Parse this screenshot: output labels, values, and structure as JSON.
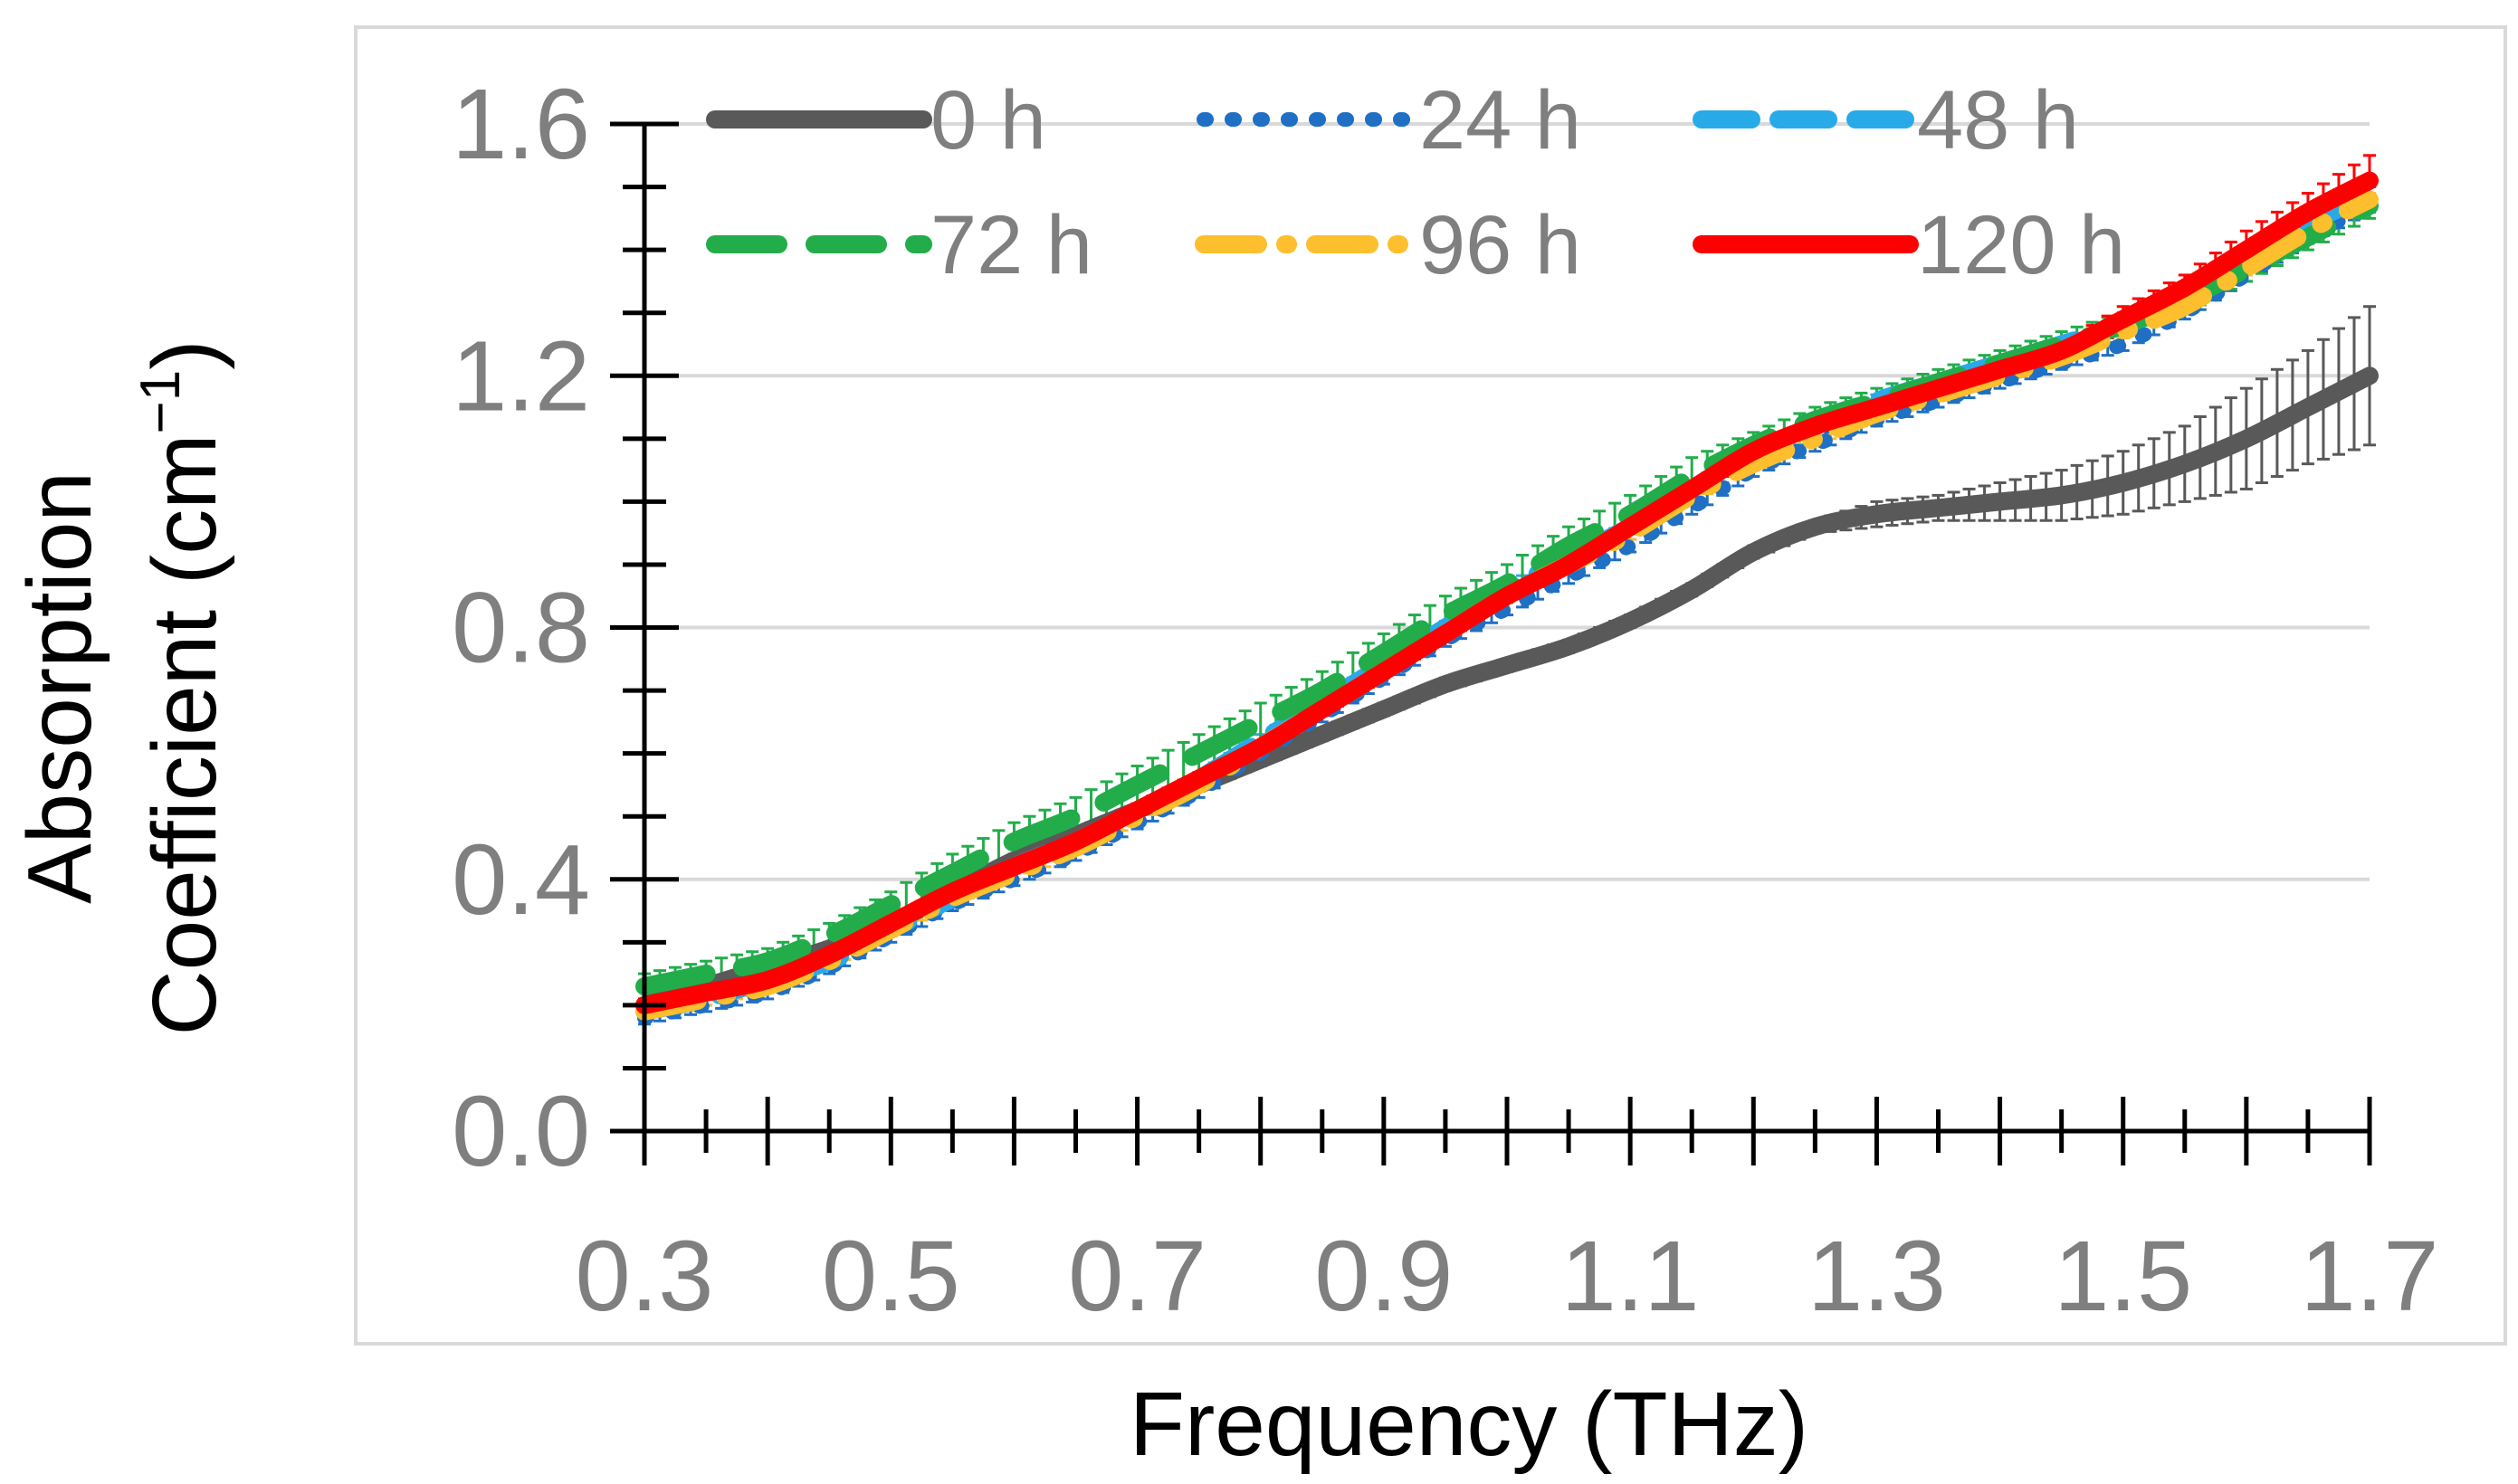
{
  "chart_data": {
    "type": "line",
    "title": "",
    "xlabel": "Frequency (THz)",
    "ylabel_line1": "Absorption",
    "ylabel_line2": "Coefficient (cm",
    "ylabel_sup": "−1",
    "ylabel_close": ")",
    "xlim": [
      0.3,
      1.7
    ],
    "ylim": [
      0.0,
      1.6
    ],
    "xticks": [
      "0.3",
      "0.5",
      "0.7",
      "0.9",
      "1.1",
      "1.3",
      "1.5",
      "1.7"
    ],
    "yticks": [
      "0.0",
      "0.4",
      "0.8",
      "1.2",
      "1.6"
    ],
    "grid": true,
    "legend_position": "top",
    "x": [
      0.3,
      0.35,
      0.4,
      0.45,
      0.5,
      0.55,
      0.6,
      0.65,
      0.7,
      0.75,
      0.8,
      0.85,
      0.9,
      0.95,
      1.0,
      1.05,
      1.1,
      1.15,
      1.2,
      1.25,
      1.3,
      1.35,
      1.4,
      1.45,
      1.5,
      1.55,
      1.6,
      1.65,
      1.7
    ],
    "series": [
      {
        "name": "0 h",
        "color": "#595959",
        "dash": "solid",
        "values": [
          0.2,
          0.23,
          0.26,
          0.29,
          0.33,
          0.38,
          0.43,
          0.47,
          0.51,
          0.55,
          0.59,
          0.63,
          0.67,
          0.71,
          0.74,
          0.77,
          0.81,
          0.86,
          0.92,
          0.96,
          0.98,
          0.99,
          1.0,
          1.01,
          1.03,
          1.06,
          1.1,
          1.15,
          1.2
        ],
        "errors": [
          0.01,
          0.01,
          0.01,
          0.01,
          0.01,
          0.01,
          0.01,
          0.01,
          0.01,
          0.01,
          0.01,
          0.01,
          0.01,
          0.01,
          0.01,
          0.01,
          0.01,
          0.01,
          0.01,
          0.01,
          0.02,
          0.02,
          0.03,
          0.04,
          0.05,
          0.06,
          0.08,
          0.09,
          0.11
        ]
      },
      {
        "name": "24 h",
        "color": "#1f6fc4",
        "dash": "dot",
        "values": [
          0.18,
          0.2,
          0.22,
          0.26,
          0.31,
          0.36,
          0.4,
          0.44,
          0.49,
          0.54,
          0.6,
          0.66,
          0.72,
          0.78,
          0.83,
          0.88,
          0.93,
          0.99,
          1.05,
          1.09,
          1.13,
          1.16,
          1.19,
          1.22,
          1.25,
          1.3,
          1.36,
          1.42,
          1.47
        ],
        "errors": [
          0.01,
          0.01,
          0.01,
          0.01,
          0.01,
          0.01,
          0.01,
          0.01,
          0.01,
          0.01,
          0.01,
          0.01,
          0.01,
          0.01,
          0.01,
          0.01,
          0.01,
          0.01,
          0.01,
          0.01,
          0.01,
          0.01,
          0.01,
          0.01,
          0.01,
          0.01,
          0.01,
          0.01,
          0.01
        ]
      },
      {
        "name": "48 h",
        "color": "#29aae8",
        "dash": "dash",
        "values": [
          0.19,
          0.21,
          0.24,
          0.27,
          0.32,
          0.37,
          0.42,
          0.46,
          0.51,
          0.56,
          0.62,
          0.68,
          0.74,
          0.8,
          0.86,
          0.91,
          0.96,
          1.02,
          1.08,
          1.12,
          1.16,
          1.19,
          1.22,
          1.25,
          1.28,
          1.32,
          1.38,
          1.44,
          1.49
        ],
        "errors": [
          0.01,
          0.01,
          0.01,
          0.01,
          0.01,
          0.01,
          0.01,
          0.01,
          0.01,
          0.01,
          0.01,
          0.01,
          0.01,
          0.01,
          0.01,
          0.01,
          0.01,
          0.01,
          0.01,
          0.01,
          0.01,
          0.01,
          0.01,
          0.01,
          0.01,
          0.01,
          0.01,
          0.01,
          0.01
        ]
      },
      {
        "name": "72 h",
        "color": "#22ad4a",
        "dash": "longdash",
        "values": [
          0.23,
          0.25,
          0.27,
          0.31,
          0.36,
          0.41,
          0.46,
          0.5,
          0.55,
          0.6,
          0.65,
          0.7,
          0.76,
          0.82,
          0.87,
          0.93,
          0.98,
          1.04,
          1.09,
          1.13,
          1.16,
          1.19,
          1.22,
          1.25,
          1.28,
          1.32,
          1.37,
          1.42,
          1.47
        ],
        "errors": [
          0.02,
          0.02,
          0.02,
          0.02,
          0.02,
          0.03,
          0.03,
          0.03,
          0.03,
          0.03,
          0.03,
          0.03,
          0.03,
          0.03,
          0.03,
          0.03,
          0.03,
          0.03,
          0.02,
          0.02,
          0.02,
          0.02,
          0.02,
          0.02,
          0.02,
          0.02,
          0.02,
          0.02,
          0.02
        ]
      },
      {
        "name": "96 h",
        "color": "#fdbf2d",
        "dash": "dashdot",
        "values": [
          0.19,
          0.21,
          0.23,
          0.27,
          0.32,
          0.37,
          0.41,
          0.45,
          0.5,
          0.55,
          0.61,
          0.67,
          0.73,
          0.79,
          0.85,
          0.9,
          0.95,
          1.01,
          1.06,
          1.1,
          1.14,
          1.17,
          1.2,
          1.23,
          1.27,
          1.31,
          1.37,
          1.43,
          1.48
        ],
        "errors": [
          0.01,
          0.01,
          0.01,
          0.01,
          0.01,
          0.01,
          0.01,
          0.01,
          0.01,
          0.01,
          0.01,
          0.01,
          0.01,
          0.01,
          0.01,
          0.01,
          0.01,
          0.01,
          0.01,
          0.01,
          0.01,
          0.01,
          0.01,
          0.01,
          0.01,
          0.01,
          0.01,
          0.01,
          0.01
        ]
      },
      {
        "name": "120 h",
        "color": "#ff0000",
        "dash": "solid",
        "values": [
          0.2,
          0.22,
          0.24,
          0.28,
          0.33,
          0.38,
          0.42,
          0.46,
          0.51,
          0.56,
          0.61,
          0.67,
          0.73,
          0.79,
          0.85,
          0.9,
          0.96,
          1.02,
          1.08,
          1.12,
          1.15,
          1.18,
          1.21,
          1.24,
          1.29,
          1.34,
          1.4,
          1.46,
          1.51
        ],
        "errors": [
          0.01,
          0.01,
          0.01,
          0.01,
          0.01,
          0.01,
          0.01,
          0.01,
          0.01,
          0.01,
          0.01,
          0.01,
          0.01,
          0.01,
          0.01,
          0.01,
          0.01,
          0.01,
          0.01,
          0.01,
          0.01,
          0.01,
          0.01,
          0.01,
          0.02,
          0.02,
          0.03,
          0.03,
          0.04
        ]
      }
    ]
  }
}
